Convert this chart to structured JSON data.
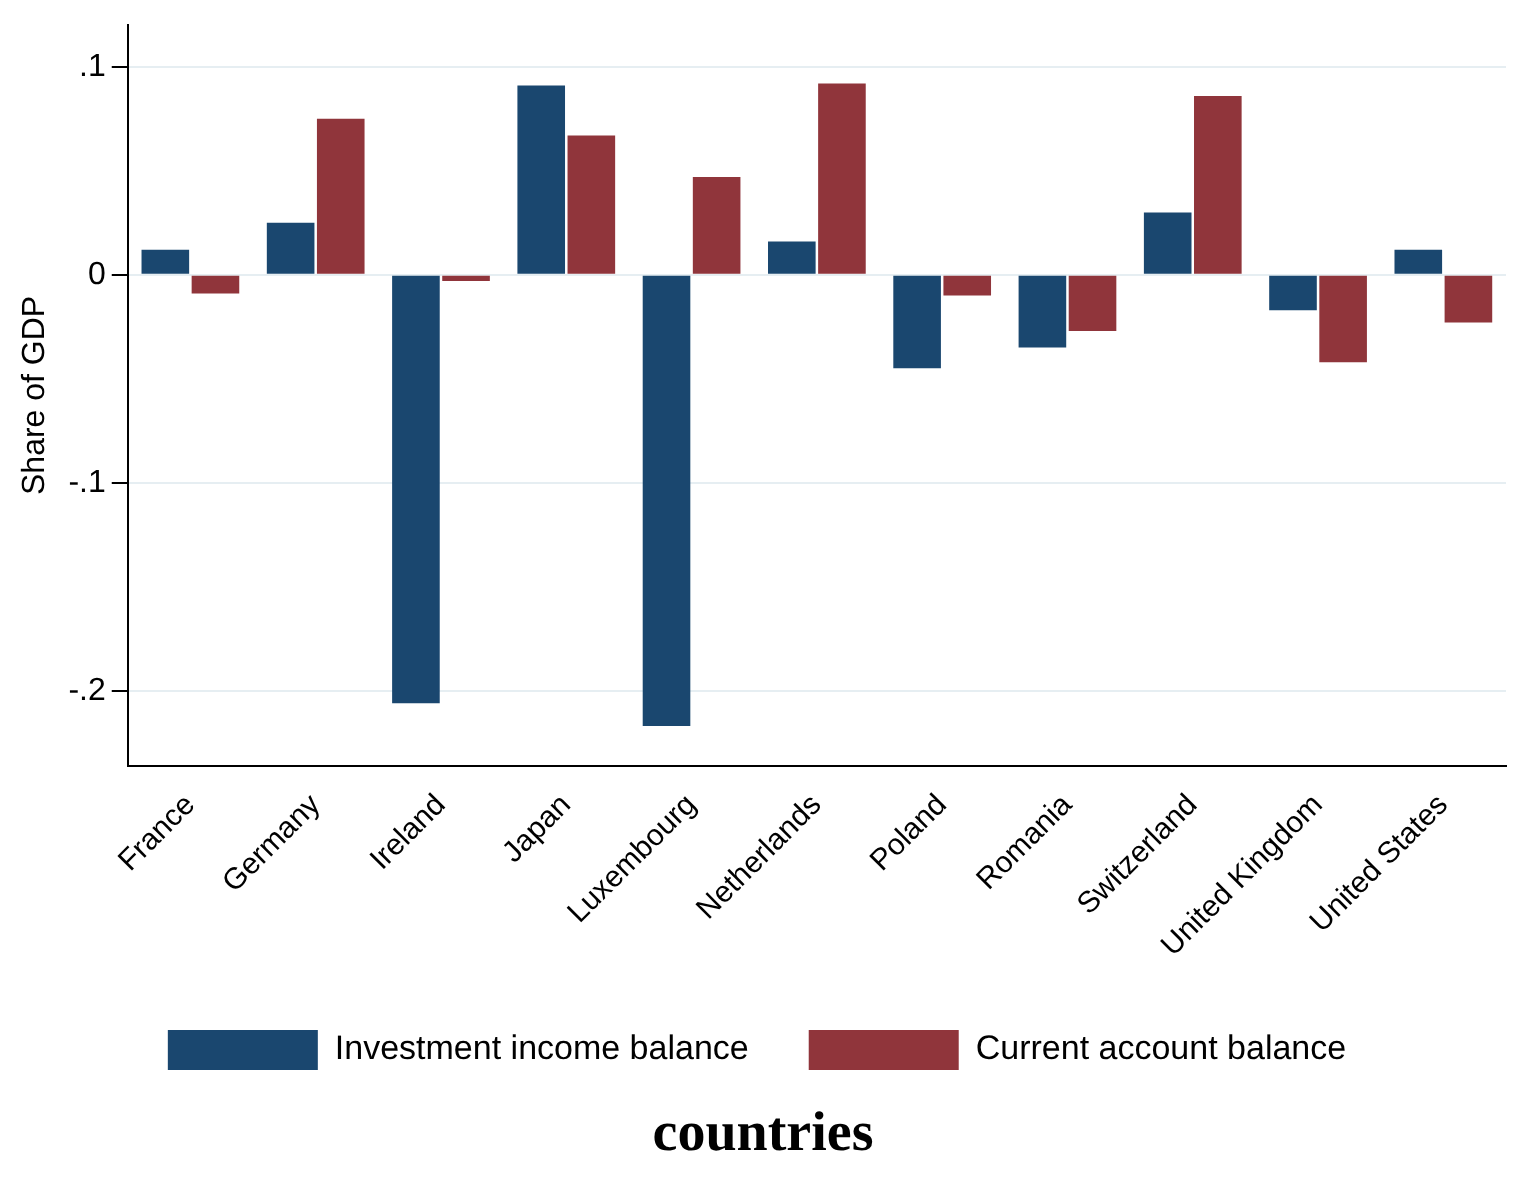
{
  "chart_data": {
    "type": "bar",
    "xlabel": "countries",
    "ylabel": "Share of GDP",
    "categories": [
      "France",
      "Germany",
      "Ireland",
      "Japan",
      "Luxembourg",
      "Netherlands",
      "Poland",
      "Romania",
      "Switzerland",
      "United Kingdom",
      "United States"
    ],
    "series": [
      {
        "name": "Investment income balance",
        "color": "#1a476f",
        "values": [
          0.012,
          0.025,
          -0.206,
          0.091,
          -0.217,
          0.016,
          -0.045,
          -0.035,
          0.03,
          -0.017,
          0.012
        ]
      },
      {
        "name": "Current account balance",
        "color": "#90353b",
        "values": [
          -0.009,
          0.075,
          -0.003,
          0.067,
          0.047,
          0.092,
          -0.01,
          -0.027,
          0.086,
          -0.042,
          -0.023
        ]
      }
    ],
    "ylim": [
      -0.236,
      0.12
    ],
    "yticks": [
      {
        "value": -0.2,
        "label": "-.2"
      },
      {
        "value": -0.1,
        "label": "-.1"
      },
      {
        "value": 0,
        "label": "0"
      },
      {
        "value": 0.1,
        "label": ".1"
      }
    ],
    "grid": "y",
    "legend": "bottom"
  }
}
